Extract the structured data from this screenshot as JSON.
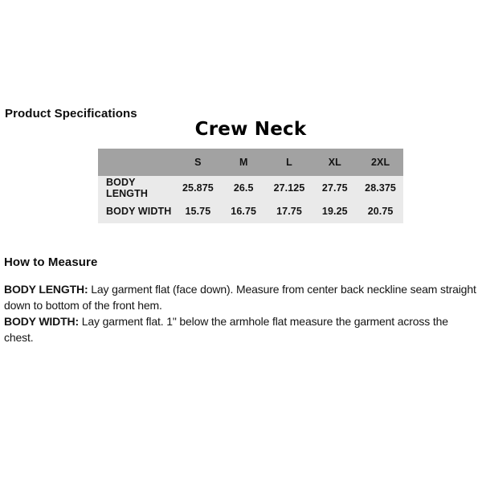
{
  "page": {
    "section_title": "Product Specifications",
    "product_title": "Crew Neck"
  },
  "size_table": {
    "header_bg": "#a2a2a2",
    "body_bg": "#eaeaea",
    "columns": [
      "S",
      "M",
      "L",
      "XL",
      "2XL"
    ],
    "rows": [
      {
        "label": "BODY LENGTH",
        "values": [
          "25.875",
          "26.5",
          "27.125",
          "27.75",
          "28.375"
        ]
      },
      {
        "label": "BODY WIDTH",
        "values": [
          "15.75",
          "16.75",
          "17.75",
          "19.25",
          "20.75"
        ]
      }
    ]
  },
  "how_to_measure": {
    "heading": "How to Measure",
    "items": [
      {
        "term": "BODY LENGTH:",
        "description": "Lay garment flat (face down). Measure from center back neckline seam straight down to bottom of the front hem."
      },
      {
        "term": "BODY WIDTH:",
        "description": "Lay garment flat. 1\" below the armhole flat measure the garment across the chest."
      }
    ]
  }
}
